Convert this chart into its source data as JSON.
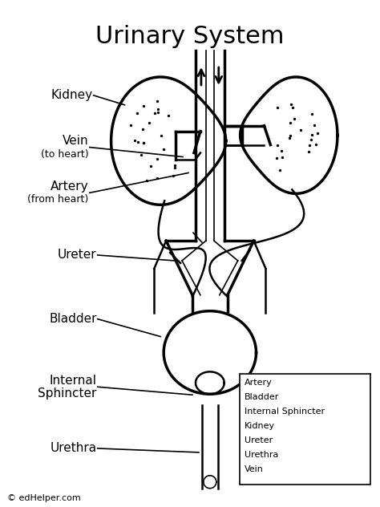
{
  "title": "Urinary System",
  "title_fontsize": 22,
  "bg_color": "#ffffff",
  "line_color": "#000000",
  "legend_items": [
    "Artery",
    "Bladder",
    "Internal Sphincter",
    "Kidney",
    "Ureter",
    "Urethra",
    "Vein"
  ],
  "footer": "© edHelper.com",
  "lw_main": 2.5,
  "lw_med": 1.8,
  "lw_thin": 1.2
}
